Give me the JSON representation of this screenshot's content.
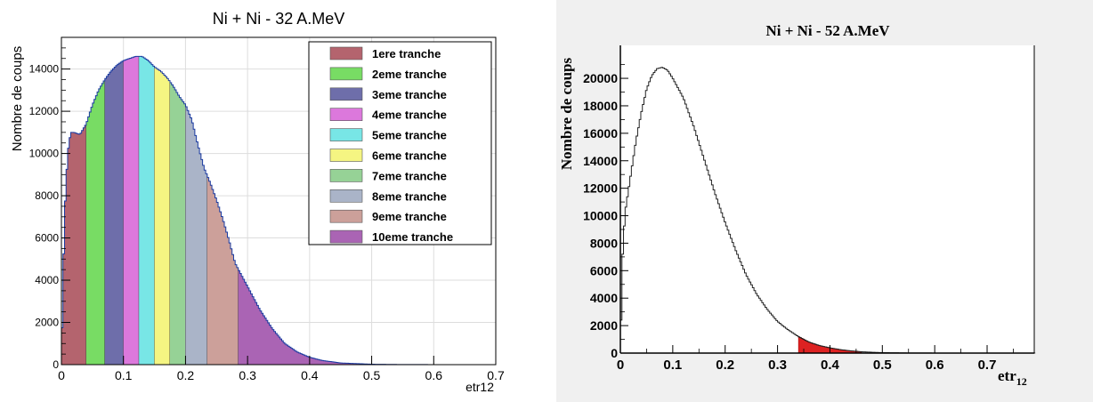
{
  "chart_data": [
    {
      "type": "histogram",
      "title": "Ni + Ni - 32 A.MeV",
      "xlabel": "etr12",
      "ylabel": "Nombre de coups",
      "xlim": [
        0,
        0.7
      ],
      "ylim": [
        0,
        15500
      ],
      "xticks": [
        "0",
        "0.1",
        "0.2",
        "0.3",
        "0.4",
        "0.5",
        "0.6",
        "0.7"
      ],
      "yticks": [
        "0",
        "2000",
        "4000",
        "6000",
        "8000",
        "10000",
        "12000",
        "14000"
      ],
      "grid": true,
      "legend_position": "top-right",
      "x": [
        0,
        0.005,
        0.01,
        0.015,
        0.02,
        0.03,
        0.04,
        0.05,
        0.06,
        0.07,
        0.08,
        0.09,
        0.1,
        0.11,
        0.12,
        0.13,
        0.14,
        0.15,
        0.16,
        0.17,
        0.18,
        0.19,
        0.2,
        0.21,
        0.22,
        0.23,
        0.24,
        0.25,
        0.26,
        0.27,
        0.28,
        0.3,
        0.32,
        0.34,
        0.36,
        0.38,
        0.4,
        0.42,
        0.45,
        0.5,
        0.55,
        0.6,
        0.7
      ],
      "y": [
        0,
        7000,
        10000,
        11000,
        11000,
        10900,
        11400,
        12300,
        13000,
        13500,
        13900,
        14200,
        14400,
        14500,
        14600,
        14600,
        14400,
        14100,
        13900,
        13600,
        13200,
        12700,
        12300,
        11600,
        10400,
        9300,
        8600,
        7800,
        6900,
        5900,
        4800,
        3700,
        2600,
        1700,
        1000,
        600,
        350,
        200,
        80,
        20,
        5,
        2,
        0
      ],
      "series": [
        {
          "name": "1ere tranche",
          "x_range": [
            0.0,
            0.04
          ],
          "color": "#b4646e"
        },
        {
          "name": "2eme tranche",
          "x_range": [
            0.04,
            0.07
          ],
          "color": "#78dc64"
        },
        {
          "name": "3eme tranche",
          "x_range": [
            0.07,
            0.1
          ],
          "color": "#6e6eaa"
        },
        {
          "name": "4eme tranche",
          "x_range": [
            0.1,
            0.125
          ],
          "color": "#dc78dc"
        },
        {
          "name": "5eme tranche",
          "x_range": [
            0.125,
            0.15
          ],
          "color": "#78e6e6"
        },
        {
          "name": "6eme tranche",
          "x_range": [
            0.15,
            0.175
          ],
          "color": "#f5f582"
        },
        {
          "name": "7eme tranche",
          "x_range": [
            0.175,
            0.2
          ],
          "color": "#96d296"
        },
        {
          "name": "8eme tranche",
          "x_range": [
            0.2,
            0.235
          ],
          "color": "#aab4c8"
        },
        {
          "name": "9eme tranche",
          "x_range": [
            0.235,
            0.285
          ],
          "color": "#cca09a"
        },
        {
          "name": "10eme tranche",
          "x_range": [
            0.285,
            0.7
          ],
          "color": "#aa64b4"
        }
      ]
    },
    {
      "type": "histogram",
      "title": "Ni + Ni - 52 A.MeV",
      "xlabel": "etr",
      "xlabel_subscript": "12",
      "ylabel": "Nombre de coups",
      "xlim": [
        0,
        0.79
      ],
      "ylim": [
        0,
        22400
      ],
      "xticks": [
        "0",
        "0.1",
        "0.2",
        "0.3",
        "0.4",
        "0.5",
        "0.6",
        "0.7"
      ],
      "yticks": [
        "0",
        "2000",
        "4000",
        "6000",
        "8000",
        "10000",
        "12000",
        "14000",
        "16000",
        "18000",
        "20000"
      ],
      "grid": false,
      "x": [
        0,
        0.005,
        0.01,
        0.02,
        0.03,
        0.04,
        0.05,
        0.06,
        0.07,
        0.08,
        0.09,
        0.1,
        0.12,
        0.14,
        0.16,
        0.18,
        0.2,
        0.22,
        0.24,
        0.26,
        0.28,
        0.3,
        0.32,
        0.34,
        0.36,
        0.38,
        0.4,
        0.42,
        0.44,
        0.46,
        0.48,
        0.5,
        0.55,
        0.6,
        0.79
      ],
      "y": [
        0,
        8000,
        10500,
        13000,
        15500,
        17500,
        19200,
        20200,
        20700,
        20800,
        20600,
        20000,
        18600,
        16500,
        14100,
        11700,
        9500,
        7500,
        5700,
        4300,
        3200,
        2300,
        1700,
        1200,
        800,
        550,
        380,
        250,
        160,
        100,
        60,
        35,
        10,
        3,
        0
      ],
      "highlight": {
        "x_range": [
          0.34,
          0.46
        ],
        "color": "#dd2222"
      }
    }
  ]
}
